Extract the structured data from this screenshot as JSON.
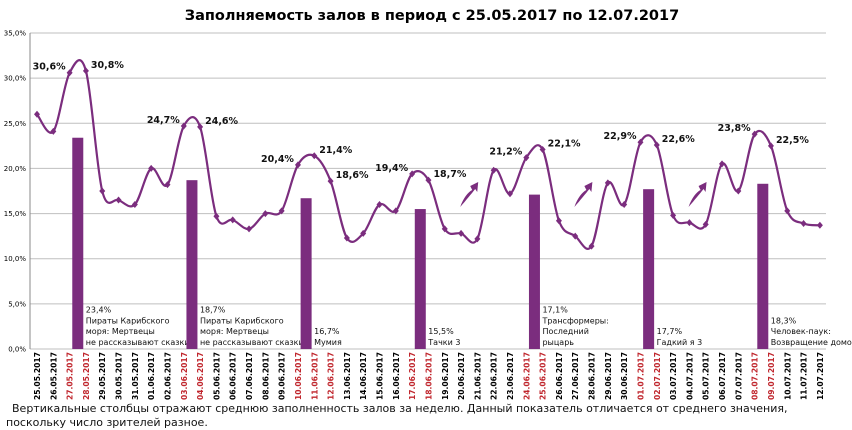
{
  "chart_data": {
    "type": "line+bar",
    "title": "Заполняемость залов в период с 25.05.2017 по 12.07.2017",
    "ylim": [
      0,
      35
    ],
    "yticks": [
      "0,0%",
      "5,0%",
      "10,0%",
      "15,0%",
      "20,0%",
      "25,0%",
      "30,0%",
      "35,0%"
    ],
    "grid": true,
    "colors": {
      "series": "#7b2d7e",
      "weekend_label": "#c0262d",
      "weekday_label": "#000000",
      "grid": "#bfbfbf"
    },
    "x": [
      "25.05.2017",
      "26.05.2017",
      "27.05.2017",
      "28.05.2017",
      "29.05.2017",
      "30.05.2017",
      "31.05.2017",
      "01.06.2017",
      "02.06.2017",
      "03.06.2017",
      "04.06.2017",
      "05.06.2017",
      "06.06.2017",
      "07.06.2017",
      "08.06.2017",
      "09.06.2017",
      "10.06.2017",
      "11.06.2017",
      "12.06.2017",
      "13.06.2017",
      "14.06.2017",
      "15.06.2017",
      "16.06.2017",
      "17.06.2017",
      "18.06.2017",
      "19.06.2017",
      "20.06.2017",
      "21.06.2017",
      "22.06.2017",
      "23.06.2017",
      "24.06.2017",
      "25.06.2017",
      "26.06.2017",
      "27.06.2017",
      "28.06.2017",
      "29.06.2017",
      "30.06.2017",
      "01.07.2017",
      "02.07.2017",
      "03.07.2017",
      "04.07.2017",
      "05.07.2017",
      "06.07.2017",
      "07.07.2017",
      "08.07.2017",
      "09.07.2017",
      "10.07.2017",
      "11.07.2017",
      "12.07.2017"
    ],
    "red_dates": [
      "27.05.2017",
      "28.05.2017",
      "03.06.2017",
      "04.06.2017",
      "10.06.2017",
      "11.06.2017",
      "12.06.2017",
      "17.06.2017",
      "18.06.2017",
      "24.06.2017",
      "25.06.2017",
      "01.07.2017",
      "02.07.2017",
      "08.07.2017",
      "09.07.2017"
    ],
    "line_values": [
      26.0,
      24.1,
      30.6,
      30.8,
      17.5,
      16.5,
      16.0,
      20.0,
      18.2,
      24.7,
      24.6,
      14.7,
      14.3,
      13.3,
      15.0,
      15.3,
      20.4,
      21.4,
      18.6,
      12.3,
      12.8,
      16.0,
      15.3,
      19.4,
      18.7,
      13.3,
      12.8,
      12.2,
      19.8,
      17.2,
      21.2,
      22.1,
      14.2,
      12.5,
      11.4,
      18.4,
      16.0,
      22.9,
      22.6,
      14.8,
      14.0,
      13.8,
      20.5,
      17.5,
      23.8,
      22.5,
      15.3,
      13.9,
      13.7
    ],
    "data_labels": [
      {
        "date": "27.05.2017",
        "text": "30,6%"
      },
      {
        "date": "28.05.2017",
        "text": "30,8%"
      },
      {
        "date": "03.06.2017",
        "text": "24,7%"
      },
      {
        "date": "04.06.2017",
        "text": "24,6%"
      },
      {
        "date": "10.06.2017",
        "text": "20,4%"
      },
      {
        "date": "11.06.2017",
        "text": "21,4%"
      },
      {
        "date": "12.06.2017",
        "text": "18,6%"
      },
      {
        "date": "17.06.2017",
        "text": "19,4%"
      },
      {
        "date": "18.06.2017",
        "text": "18,7%"
      },
      {
        "date": "24.06.2017",
        "text": "21,2%"
      },
      {
        "date": "25.06.2017",
        "text": "22,1%"
      },
      {
        "date": "01.07.2017",
        "text": "22,9%"
      },
      {
        "date": "02.07.2017",
        "text": "22,6%"
      },
      {
        "date": "08.07.2017",
        "text": "23,8%"
      },
      {
        "date": "09.07.2017",
        "text": "22,5%"
      }
    ],
    "bars": [
      {
        "weekend": [
          "27.05.2017",
          "28.05.2017"
        ],
        "value": 23.4,
        "lines": [
          "23,4%",
          "Пираты Карибского",
          "моря: Мертвецы",
          "не рассказывают сказки"
        ]
      },
      {
        "weekend": [
          "03.06.2017",
          "04.06.2017"
        ],
        "value": 18.7,
        "lines": [
          "18,7%",
          "Пираты Карибского",
          "моря: Мертвецы",
          "не рассказывают сказки"
        ]
      },
      {
        "weekend": [
          "10.06.2017",
          "11.06.2017"
        ],
        "value": 16.7,
        "lines": [
          "16,7%",
          "Мумия"
        ]
      },
      {
        "weekend": [
          "17.06.2017",
          "18.06.2017"
        ],
        "value": 15.5,
        "lines": [
          "15,5%",
          "Тачки 3"
        ]
      },
      {
        "weekend": [
          "24.06.2017",
          "25.06.2017"
        ],
        "value": 17.1,
        "lines": [
          "17,1%",
          "Трансформеры:",
          "Последний",
          "рыцарь"
        ]
      },
      {
        "weekend": [
          "01.07.2017",
          "02.07.2017"
        ],
        "value": 17.7,
        "lines": [
          "17,7%",
          "Гадкий я 3"
        ]
      },
      {
        "weekend": [
          "08.07.2017",
          "09.07.2017"
        ],
        "value": 18.3,
        "lines": [
          "18,3%",
          "Человек-паук:",
          "Возвращение домой"
        ]
      }
    ],
    "arrows": [
      {
        "icon": "up-arrow-icon",
        "after_date": "20.06.2017"
      },
      {
        "icon": "up-arrow-icon",
        "after_date": "27.06.2017"
      },
      {
        "icon": "up-arrow-icon",
        "after_date": "04.07.2017"
      }
    ]
  },
  "footnote": "Вертикальные столбцы отражают среднюю заполненность залов за неделю. Данный показатель отличается от среднего значения, поскольку число зрителей разное."
}
